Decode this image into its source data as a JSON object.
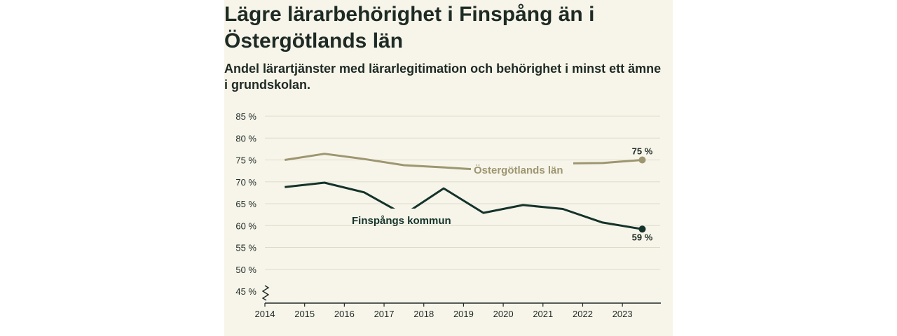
{
  "chart_data": {
    "type": "line",
    "title": "Lägre lärarbehörighet i Finspång än i Östergötlands län",
    "subtitle": "Andel lärartjänster med lärarlegitimation och behörighet i minst ett ämne i grundskolan.",
    "x_ticks": [
      "2014",
      "2015",
      "2016",
      "2017",
      "2018",
      "2019",
      "2020",
      "2021",
      "2022",
      "2023"
    ],
    "y_ticks": [
      "85 %",
      "80 %",
      "75 %",
      "70 %",
      "65 %",
      "60 %",
      "55 %",
      "50 %",
      "45 %"
    ],
    "ylim": [
      45,
      85
    ],
    "xlim": [
      2014,
      2023.95
    ],
    "grid": true,
    "series": [
      {
        "name": "Östergötlands län",
        "color": "#9d9670",
        "x": [
          2014.5,
          2015.5,
          2016.5,
          2017.5,
          2018.5,
          2019.2,
          2020.5,
          2021.5,
          2022.5,
          2023.5
        ],
        "values": [
          75.0,
          76.4,
          75.2,
          73.8,
          73.3,
          72.9,
          null,
          74.2,
          74.3,
          75.0
        ],
        "end_label": "75 %"
      },
      {
        "name": "Finspångs kommun",
        "color": "#14332a",
        "x": [
          2014.5,
          2015.5,
          2016.5,
          2017.5,
          2018.5,
          2019.5,
          2020.5,
          2021.5,
          2022.5,
          2023.5
        ],
        "values": [
          68.8,
          69.8,
          67.6,
          62.5,
          68.5,
          62.9,
          64.7,
          63.8,
          60.7,
          59.2
        ],
        "end_label": "59 %"
      }
    ]
  }
}
